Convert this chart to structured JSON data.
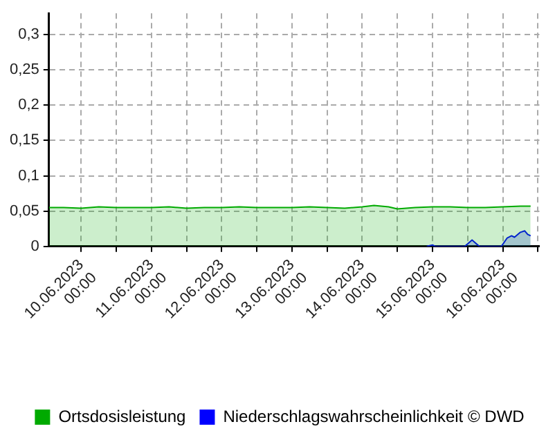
{
  "chart_data": {
    "type": "area",
    "xlim": [
      "2023-06-09T13:00",
      "2023-06-16T12:30"
    ],
    "xticks": [
      {
        "value": "2023-06-10T00:00",
        "label": "10.06.2023 00:00"
      },
      {
        "value": "2023-06-10T12:00",
        "label": null
      },
      {
        "value": "2023-06-11T00:00",
        "label": "11.06.2023 00:00"
      },
      {
        "value": "2023-06-11T12:00",
        "label": null
      },
      {
        "value": "2023-06-12T00:00",
        "label": "12.06.2023 00:00"
      },
      {
        "value": "2023-06-12T12:00",
        "label": null
      },
      {
        "value": "2023-06-13T00:00",
        "label": "13.06.2023 00:00"
      },
      {
        "value": "2023-06-13T12:00",
        "label": null
      },
      {
        "value": "2023-06-14T00:00",
        "label": "14.06.2023 00:00"
      },
      {
        "value": "2023-06-14T12:00",
        "label": null
      },
      {
        "value": "2023-06-15T00:00",
        "label": "15.06.2023 00:00"
      },
      {
        "value": "2023-06-15T12:00",
        "label": null
      },
      {
        "value": "2023-06-16T00:00",
        "label": "16.06.2023 00:00"
      },
      {
        "value": "2023-06-16T12:00",
        "label": null
      }
    ],
    "ylim": [
      0,
      0.33
    ],
    "yticks": [
      0,
      {
        "value": 0.05,
        "label": "0,05"
      },
      {
        "value": 0.1,
        "label": "0,1"
      },
      {
        "value": 0.15,
        "label": "0,15"
      },
      {
        "value": 0.2,
        "label": "0,2"
      },
      {
        "value": 0.25,
        "label": "0,25"
      },
      {
        "value": 0.3,
        "label": "0,3"
      }
    ],
    "grid": true,
    "legend": "bottom",
    "marker": "none",
    "line_style": "solid",
    "series": [
      {
        "name": "Ortsdosisleistung",
        "color": "#00aa00",
        "x": [
          "2023-06-09T13:00",
          "2023-06-09T18:00",
          "2023-06-10T00:00",
          "2023-06-10T06:00",
          "2023-06-10T12:00",
          "2023-06-10T18:00",
          "2023-06-11T00:00",
          "2023-06-11T06:00",
          "2023-06-11T12:00",
          "2023-06-11T18:00",
          "2023-06-12T00:00",
          "2023-06-12T06:00",
          "2023-06-12T12:00",
          "2023-06-12T18:00",
          "2023-06-13T00:00",
          "2023-06-13T06:00",
          "2023-06-13T12:00",
          "2023-06-13T18:00",
          "2023-06-14T00:00",
          "2023-06-14T04:00",
          "2023-06-14T09:00",
          "2023-06-14T12:00",
          "2023-06-14T18:00",
          "2023-06-15T00:00",
          "2023-06-15T06:00",
          "2023-06-15T12:00",
          "2023-06-15T18:00",
          "2023-06-16T00:00",
          "2023-06-16T06:00",
          "2023-06-16T09:30"
        ],
        "values": [
          0.055,
          0.055,
          0.054,
          0.056,
          0.055,
          0.055,
          0.055,
          0.056,
          0.054,
          0.055,
          0.055,
          0.056,
          0.055,
          0.055,
          0.055,
          0.056,
          0.055,
          0.054,
          0.056,
          0.058,
          0.056,
          0.053,
          0.055,
          0.056,
          0.056,
          0.055,
          0.055,
          0.056,
          0.057,
          0.057
        ]
      },
      {
        "name": "Niederschlagswahrscheinlichkeit © DWD",
        "color": "#0000ff",
        "x": [
          "2023-06-14T22:00",
          "2023-06-15T00:00",
          "2023-06-15T01:00",
          "2023-06-15T11:00",
          "2023-06-15T13:30",
          "2023-06-15T16:00",
          "2023-06-15T23:30",
          "2023-06-16T01:30",
          "2023-06-16T03:00",
          "2023-06-16T04:00",
          "2023-06-16T06:00",
          "2023-06-16T07:30",
          "2023-06-16T08:30",
          "2023-06-16T09:30"
        ],
        "values": [
          0,
          0.002,
          0,
          0,
          0.009,
          0,
          0,
          0.012,
          0.015,
          0.013,
          0.02,
          0.022,
          0.017,
          0.015
        ]
      }
    ]
  }
}
